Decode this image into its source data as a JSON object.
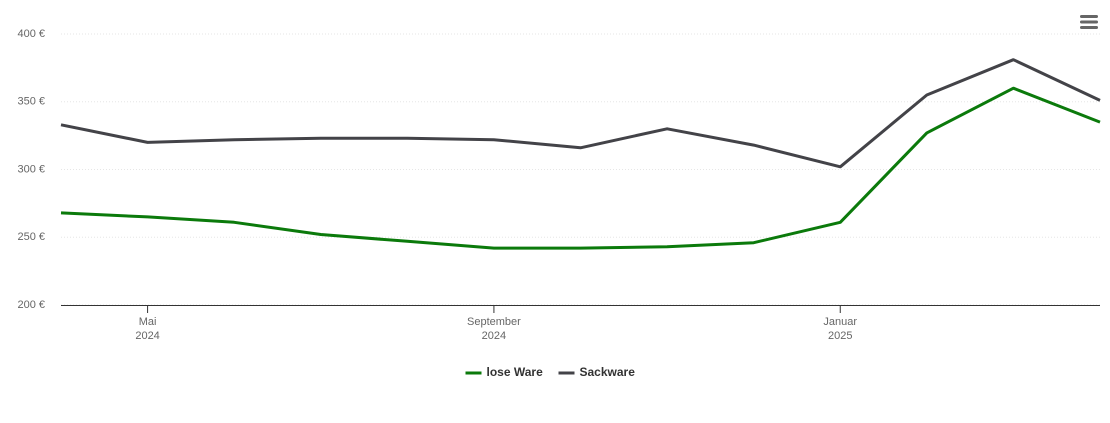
{
  "chart_data": {
    "type": "line",
    "x": [
      "2024-04",
      "2024-05",
      "2024-06",
      "2024-07",
      "2024-08",
      "2024-09",
      "2024-10",
      "2024-11",
      "2024-12",
      "2025-01",
      "2025-02",
      "2025-03",
      "2025-04"
    ],
    "series": [
      {
        "name": "lose Ware",
        "color": "#0b7a0b",
        "values": [
          268,
          265,
          261,
          252,
          247,
          242,
          242,
          243,
          246,
          261,
          327,
          360,
          335
        ]
      },
      {
        "name": "Sackware",
        "color": "#434348",
        "values": [
          333,
          320,
          322,
          323,
          323,
          322,
          316,
          330,
          318,
          302,
          355,
          381,
          351
        ]
      }
    ],
    "xlim": [
      "2024-04",
      "2025-04"
    ],
    "xticks": [
      {
        "value": "2024-05",
        "label": "Mai 2024"
      },
      {
        "value": "2024-09",
        "label": "September 2024"
      },
      {
        "value": "2025-01",
        "label": "Januar 2025"
      }
    ],
    "ylim": [
      200,
      400
    ],
    "yticks": [
      {
        "value": 200,
        "label": "200 €"
      },
      {
        "value": 250,
        "label": "250 €"
      },
      {
        "value": 300,
        "label": "300 €"
      },
      {
        "value": 350,
        "label": "350 €"
      },
      {
        "value": 400,
        "label": "400 €"
      }
    ],
    "grid": true,
    "legend": "bottom"
  }
}
